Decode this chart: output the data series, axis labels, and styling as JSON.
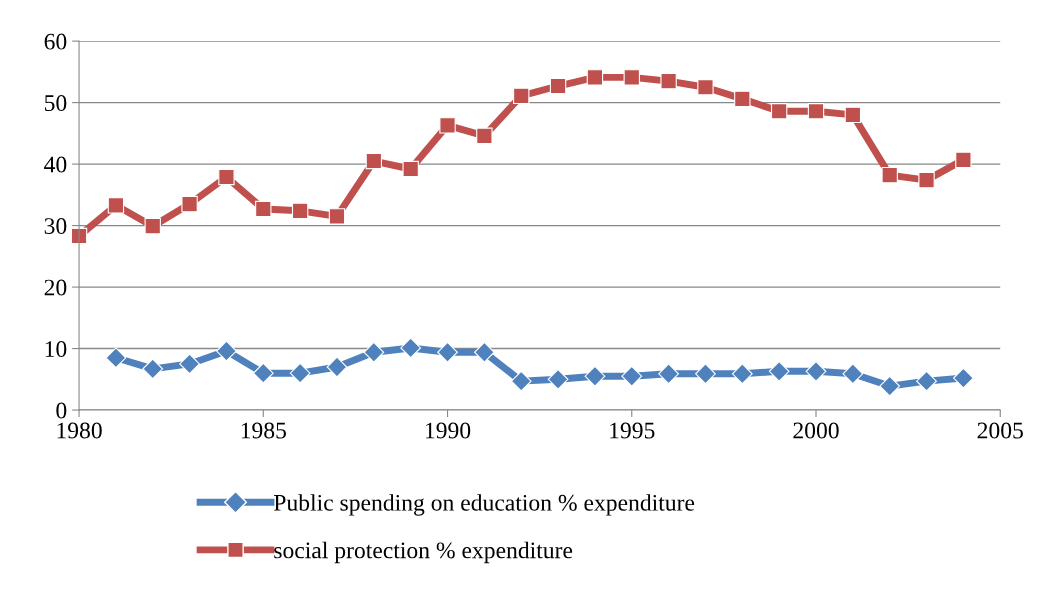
{
  "chart_data": {
    "type": "line",
    "x": [
      1980,
      1981,
      1982,
      1983,
      1984,
      1985,
      1986,
      1987,
      1988,
      1989,
      1990,
      1991,
      1992,
      1993,
      1994,
      1995,
      1996,
      1997,
      1998,
      1999,
      2000,
      2001,
      2002,
      2003,
      2004
    ],
    "series": [
      {
        "name": "Public spending on education % expenditure",
        "color": "#4f81bd",
        "marker": "diamond",
        "values": [
          null,
          8.5,
          6.7,
          7.5,
          9.6,
          6.0,
          6.0,
          7.0,
          9.4,
          10.1,
          9.4,
          9.4,
          4.7,
          5.0,
          5.5,
          5.5,
          5.9,
          5.9,
          5.9,
          6.3,
          6.3,
          5.9,
          3.9,
          4.7,
          5.2
        ]
      },
      {
        "name": "social protection % expenditure",
        "color": "#c0504d",
        "marker": "square",
        "values": [
          28.3,
          33.3,
          29.9,
          33.5,
          37.9,
          32.7,
          32.4,
          31.5,
          40.5,
          39.2,
          46.3,
          44.6,
          51.1,
          52.7,
          54.1,
          54.1,
          53.5,
          52.5,
          50.6,
          48.6,
          48.6,
          48.0,
          38.2,
          37.4,
          40.7
        ]
      }
    ],
    "xlim": [
      1980,
      2005
    ],
    "xticks": [
      1980,
      1985,
      1990,
      1995,
      2000,
      2005
    ],
    "ylim": [
      0,
      60
    ],
    "yticks": [
      0,
      10,
      20,
      30,
      40,
      50,
      60
    ],
    "grid": "y",
    "legend": "bottom",
    "line_style": "solid"
  }
}
